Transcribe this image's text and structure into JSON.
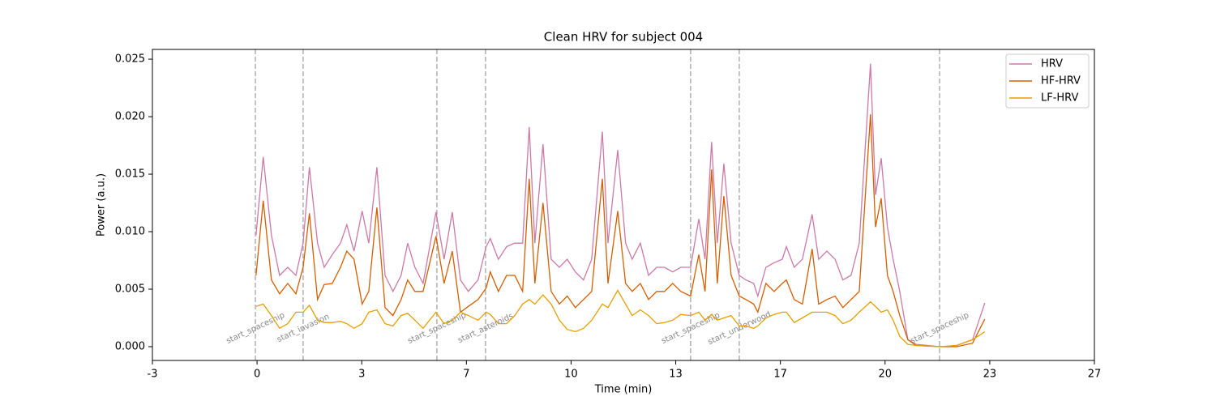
{
  "chart_data": {
    "type": "line",
    "title": "Clean HRV for subject 004",
    "x_label": "Time (min)",
    "y_label": "Power (a.u.)",
    "xlim": [
      -3,
      27
    ],
    "ylim": [
      -0.0012,
      0.02585
    ],
    "xticks": [
      {
        "value": -3,
        "label": "-3"
      },
      {
        "value": 0.333,
        "label": "0"
      },
      {
        "value": 3.667,
        "label": "3"
      },
      {
        "value": 7,
        "label": "7"
      },
      {
        "value": 10.333,
        "label": "10"
      },
      {
        "value": 13.667,
        "label": "13"
      },
      {
        "value": 17,
        "label": "17"
      },
      {
        "value": 20.333,
        "label": "20"
      },
      {
        "value": 23.667,
        "label": "23"
      },
      {
        "value": 27,
        "label": "27"
      }
    ],
    "yticks": [
      {
        "value": 0,
        "label": "0.000"
      },
      {
        "value": 0.005,
        "label": "0.005"
      },
      {
        "value": 0.01,
        "label": "0.010"
      },
      {
        "value": 0.015,
        "label": "0.015"
      },
      {
        "value": 0.02,
        "label": "0.020"
      },
      {
        "value": 0.025,
        "label": "0.025"
      }
    ],
    "legend": "upper right",
    "events": [
      {
        "time": 0.28,
        "label": "start_spaceship"
      },
      {
        "time": 1.8,
        "label": "start_invasion"
      },
      {
        "time": 6.06,
        "label": "start_spaceship"
      },
      {
        "time": 7.61,
        "label": "start_asteroids"
      },
      {
        "time": 14.14,
        "label": "start_spaceship"
      },
      {
        "time": 15.69,
        "label": "start_underwood"
      },
      {
        "time": 22.07,
        "label": "start_spaceship"
      }
    ],
    "x": [
      0.3,
      0.53,
      0.79,
      1.05,
      1.31,
      1.57,
      1.8,
      2.0,
      2.26,
      2.47,
      2.73,
      2.99,
      3.19,
      3.42,
      3.68,
      3.89,
      4.15,
      4.41,
      4.66,
      4.92,
      5.13,
      5.36,
      5.62,
      6.03,
      6.29,
      6.55,
      6.81,
      7.06,
      7.37,
      7.63,
      7.76,
      8.02,
      8.28,
      8.54,
      8.79,
      9.0,
      9.18,
      9.44,
      9.7,
      9.96,
      10.21,
      10.47,
      10.73,
      10.99,
      11.33,
      11.51,
      11.82,
      12.07,
      12.28,
      12.54,
      12.8,
      13.06,
      13.31,
      13.57,
      13.83,
      14.14,
      14.4,
      14.6,
      14.81,
      14.99,
      15.2,
      15.43,
      15.69,
      15.9,
      16.15,
      16.28,
      16.54,
      16.8,
      17.06,
      17.19,
      17.44,
      17.7,
      18.01,
      18.22,
      18.48,
      18.74,
      18.99,
      19.25,
      19.51,
      19.87,
      20.03,
      20.21,
      20.41,
      20.59,
      20.8,
      21.06,
      21.32,
      22.09,
      22.61,
      23.12,
      23.51
    ],
    "series": [
      {
        "name": "HRV",
        "color": "#cc79a7",
        "values": [
          0.0097,
          0.0165,
          0.0097,
          0.0062,
          0.0069,
          0.0062,
          0.009,
          0.0156,
          0.009,
          0.0069,
          0.008,
          0.009,
          0.0106,
          0.0083,
          0.0118,
          0.009,
          0.0156,
          0.0062,
          0.0048,
          0.0062,
          0.009,
          0.0069,
          0.0055,
          0.0117,
          0.0076,
          0.0117,
          0.0058,
          0.0048,
          0.0058,
          0.0087,
          0.0094,
          0.0076,
          0.0087,
          0.009,
          0.009,
          0.0191,
          0.009,
          0.0176,
          0.0076,
          0.0069,
          0.0076,
          0.0065,
          0.0058,
          0.0076,
          0.0187,
          0.009,
          0.0171,
          0.009,
          0.0076,
          0.009,
          0.0062,
          0.0069,
          0.0069,
          0.0065,
          0.0069,
          0.0069,
          0.0111,
          0.0076,
          0.0178,
          0.009,
          0.0159,
          0.009,
          0.0062,
          0.0058,
          0.0055,
          0.0044,
          0.0069,
          0.0073,
          0.0076,
          0.0087,
          0.0069,
          0.0076,
          0.0115,
          0.0076,
          0.0083,
          0.0076,
          0.0058,
          0.0062,
          0.009,
          0.0246,
          0.0132,
          0.0164,
          0.0104,
          0.0076,
          0.0048,
          0.0006,
          0.0002,
          0,
          0.0001,
          0.0006,
          0.0038
        ]
      },
      {
        "name": "HF-HRV",
        "color": "#d55e00",
        "values": [
          0.0062,
          0.0127,
          0.0058,
          0.0046,
          0.0055,
          0.0046,
          0.0069,
          0.0116,
          0.0041,
          0.0054,
          0.0055,
          0.0069,
          0.0083,
          0.0076,
          0.0037,
          0.0048,
          0.0121,
          0.0034,
          0.0027,
          0.0041,
          0.0058,
          0.0048,
          0.0048,
          0.0096,
          0.0055,
          0.0083,
          0.003,
          0.0035,
          0.0041,
          0.0051,
          0.0065,
          0.0048,
          0.0062,
          0.0062,
          0.0048,
          0.0146,
          0.0055,
          0.0125,
          0.0048,
          0.0037,
          0.0044,
          0.0034,
          0.0041,
          0.0048,
          0.0146,
          0.0055,
          0.0118,
          0.0055,
          0.0048,
          0.0055,
          0.0041,
          0.0048,
          0.0048,
          0.0055,
          0.0048,
          0.0044,
          0.008,
          0.0048,
          0.0154,
          0.0055,
          0.0131,
          0.0062,
          0.0044,
          0.0041,
          0.0037,
          0.003,
          0.0055,
          0.0048,
          0.0055,
          0.0058,
          0.0041,
          0.0037,
          0.0085,
          0.0037,
          0.0041,
          0.0044,
          0.0034,
          0.0041,
          0.0048,
          0.0202,
          0.0104,
          0.0129,
          0.0062,
          0.0048,
          0.0027,
          0.0006,
          0.0001,
          0,
          0,
          0.0003,
          0.0024
        ]
      },
      {
        "name": "LF-HRV",
        "color": "#e69f00",
        "values": [
          0.0035,
          0.0037,
          0.0027,
          0.0016,
          0.002,
          0.003,
          0.003,
          0.0036,
          0.0023,
          0.0021,
          0.0021,
          0.0022,
          0.002,
          0.0016,
          0.002,
          0.003,
          0.0032,
          0.002,
          0.0018,
          0.0027,
          0.0029,
          0.0023,
          0.0016,
          0.003,
          0.002,
          0.0023,
          0.003,
          0.0027,
          0.0023,
          0.003,
          0.0028,
          0.002,
          0.002,
          0.0027,
          0.0037,
          0.0041,
          0.0037,
          0.0045,
          0.0037,
          0.0023,
          0.0015,
          0.0013,
          0.0016,
          0.0023,
          0.0037,
          0.0034,
          0.0049,
          0.0037,
          0.0027,
          0.0032,
          0.0027,
          0.002,
          0.0021,
          0.0023,
          0.0028,
          0.0027,
          0.003,
          0.0023,
          0.0028,
          0.0023,
          0.0025,
          0.0027,
          0.0018,
          0.0018,
          0.0016,
          0.0018,
          0.0025,
          0.0028,
          0.003,
          0.003,
          0.0021,
          0.0025,
          0.003,
          0.003,
          0.003,
          0.0027,
          0.002,
          0.0023,
          0.003,
          0.0039,
          0.0035,
          0.003,
          0.0032,
          0.0023,
          0.0009,
          0.0002,
          0.0001,
          0,
          0.0001,
          0.0006,
          0.0013
        ]
      }
    ]
  }
}
